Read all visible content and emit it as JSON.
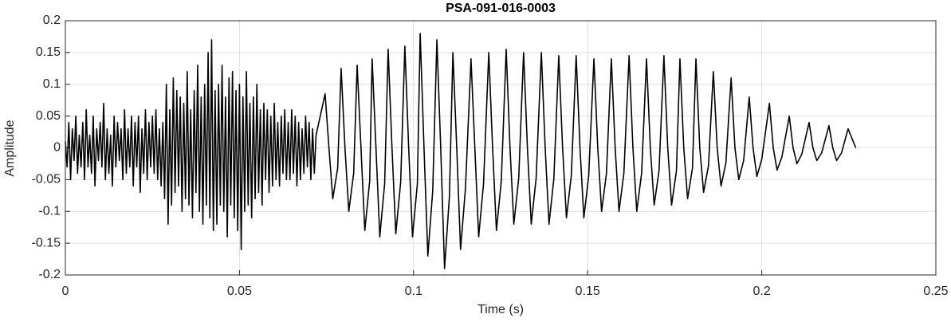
{
  "chart_data": {
    "type": "line",
    "title": "PSA-091-016-0003",
    "xlabel": "Time (s)",
    "ylabel": "Amplitude",
    "color": "#000000",
    "grid": true,
    "xlim": [
      0,
      0.25
    ],
    "xticks": [
      0,
      0.05,
      0.1,
      0.15,
      0.2,
      0.25
    ],
    "ylim": [
      -0.2,
      0.2
    ],
    "yticks": [
      -0.2,
      -0.15,
      -0.1,
      -0.05,
      0,
      0.05,
      0.1,
      0.15,
      0.2
    ],
    "x": [
      0,
      0.0005,
      0.001,
      0.0015,
      0.002,
      0.0025,
      0.003,
      0.0035,
      0.004,
      0.0045,
      0.005,
      0.0055,
      0.006,
      0.0065,
      0.007,
      0.0075,
      0.008,
      0.0085,
      0.009,
      0.0095,
      0.01,
      0.0105,
      0.011,
      0.0115,
      0.012,
      0.0125,
      0.013,
      0.0135,
      0.014,
      0.0145,
      0.015,
      0.0155,
      0.016,
      0.0165,
      0.017,
      0.0175,
      0.018,
      0.0185,
      0.019,
      0.0195,
      0.02,
      0.0205,
      0.021,
      0.0215,
      0.022,
      0.0225,
      0.023,
      0.0235,
      0.024,
      0.0245,
      0.025,
      0.0255,
      0.026,
      0.0265,
      0.027,
      0.0275,
      0.028,
      0.0285,
      0.029,
      0.0295,
      0.03,
      0.0305,
      0.031,
      0.0315,
      0.032,
      0.0325,
      0.033,
      0.0335,
      0.034,
      0.0345,
      0.035,
      0.0355,
      0.036,
      0.0365,
      0.037,
      0.0375,
      0.038,
      0.0385,
      0.039,
      0.0395,
      0.04,
      0.0405,
      0.041,
      0.0415,
      0.042,
      0.0425,
      0.043,
      0.0435,
      0.044,
      0.0445,
      0.045,
      0.0455,
      0.046,
      0.0465,
      0.047,
      0.0475,
      0.048,
      0.0485,
      0.049,
      0.0495,
      0.05,
      0.0505,
      0.051,
      0.0515,
      0.052,
      0.0525,
      0.053,
      0.0535,
      0.054,
      0.0545,
      0.055,
      0.0555,
      0.056,
      0.0565,
      0.057,
      0.0575,
      0.058,
      0.0585,
      0.059,
      0.0595,
      0.06,
      0.0605,
      0.061,
      0.0615,
      0.062,
      0.0625,
      0.063,
      0.0635,
      0.064,
      0.0645,
      0.065,
      0.0655,
      0.066,
      0.0665,
      0.067,
      0.0675,
      0.068,
      0.0685,
      0.069,
      0.0695,
      0.07,
      0.0705,
      0.071,
      0.0715,
      0.072,
      0.0746,
      0.0757,
      0.0768,
      0.0782,
      0.0792,
      0.0803,
      0.0814,
      0.0828,
      0.0838,
      0.0849,
      0.086,
      0.0874,
      0.0881,
      0.0892,
      0.0903,
      0.0917,
      0.0927,
      0.0938,
      0.0949,
      0.0963,
      0.0975,
      0.0986,
      0.0997,
      0.1011,
      0.1019,
      0.103,
      0.1041,
      0.1055,
      0.1067,
      0.1078,
      0.1089,
      0.1103,
      0.1113,
      0.1124,
      0.1135,
      0.1149,
      0.1165,
      0.1176,
      0.1187,
      0.1201,
      0.1216,
      0.1227,
      0.1238,
      0.1252,
      0.1266,
      0.1277,
      0.1288,
      0.1302,
      0.1316,
      0.1327,
      0.1338,
      0.1352,
      0.1367,
      0.1378,
      0.1389,
      0.1403,
      0.1417,
      0.1428,
      0.1439,
      0.1453,
      0.1467,
      0.1478,
      0.1489,
      0.1503,
      0.1518,
      0.1529,
      0.154,
      0.1554,
      0.1568,
      0.1579,
      0.159,
      0.1604,
      0.1619,
      0.163,
      0.1641,
      0.1655,
      0.1669,
      0.168,
      0.1691,
      0.1705,
      0.1719,
      0.173,
      0.1741,
      0.1755,
      0.1765,
      0.1776,
      0.1787,
      0.1801,
      0.1811,
      0.1822,
      0.1833,
      0.1847,
      0.1861,
      0.1872,
      0.1883,
      0.1897,
      0.1912,
      0.1923,
      0.1934,
      0.1948,
      0.1964,
      0.1975,
      0.1986,
      0.2,
      0.2022,
      0.2033,
      0.2044,
      0.2058,
      0.2079,
      0.209,
      0.2101,
      0.2115,
      0.2136,
      0.2147,
      0.2158,
      0.2172,
      0.2193,
      0.2204,
      0.2215,
      0.2229,
      0.2248,
      0.227
    ],
    "values": [
      0.01,
      -0.03,
      0.04,
      -0.05,
      0.03,
      -0.02,
      0.05,
      -0.04,
      0.02,
      -0.03,
      0.04,
      -0.05,
      0.06,
      -0.03,
      0.02,
      -0.04,
      0.05,
      -0.06,
      0.03,
      -0.02,
      0.04,
      -0.03,
      0.07,
      -0.05,
      0.03,
      -0.04,
      0.02,
      -0.06,
      0.05,
      -0.03,
      0.04,
      -0.02,
      0.03,
      -0.05,
      0.06,
      -0.04,
      0.03,
      -0.03,
      0.05,
      -0.06,
      0.04,
      -0.03,
      0.05,
      -0.07,
      0.03,
      -0.04,
      0.06,
      -0.05,
      0.04,
      -0.03,
      0.05,
      -0.04,
      0.06,
      -0.05,
      0.03,
      -0.06,
      0.04,
      -0.08,
      0.1,
      -0.12,
      0.06,
      -0.09,
      0.11,
      -0.07,
      0.09,
      -0.06,
      0.08,
      -0.1,
      0.07,
      -0.08,
      0.12,
      -0.09,
      0.06,
      -0.11,
      0.09,
      -0.07,
      0.13,
      -0.1,
      0.08,
      -0.12,
      0.1,
      -0.09,
      0.15,
      -0.11,
      0.17,
      -0.13,
      0.09,
      -0.12,
      0.1,
      -0.09,
      0.13,
      -0.1,
      0.08,
      -0.14,
      0.11,
      -0.09,
      0.12,
      -0.11,
      0.09,
      -0.13,
      0.1,
      -0.16,
      0.08,
      -0.1,
      0.12,
      -0.09,
      0.07,
      -0.11,
      0.08,
      -0.08,
      0.1,
      -0.07,
      0.06,
      -0.09,
      0.07,
      -0.05,
      0.06,
      -0.07,
      0.05,
      -0.06,
      0.07,
      -0.05,
      0.04,
      -0.06,
      0.05,
      -0.04,
      0.06,
      -0.05,
      0.04,
      -0.05,
      0.06,
      -0.04,
      0.05,
      -0.06,
      0.04,
      -0.05,
      0.03,
      -0.04,
      0.05,
      -0.03,
      0.04,
      -0.05,
      0.03,
      -0.04,
      0.02,
      0.085,
      0,
      -0.08,
      -0.032,
      0.125,
      0,
      -0.1,
      -0.04,
      0.13,
      0,
      -0.13,
      -0.052,
      0.14,
      0,
      -0.14,
      -0.056,
      0.155,
      0,
      -0.135,
      -0.054,
      0.16,
      0,
      -0.14,
      -0.056,
      0.18,
      0,
      -0.17,
      -0.068,
      0.17,
      0,
      -0.19,
      -0.076,
      0.15,
      0,
      -0.16,
      -0.064,
      0.14,
      0,
      -0.14,
      -0.056,
      0.15,
      0,
      -0.13,
      -0.052,
      0.155,
      0,
      -0.12,
      -0.048,
      0.15,
      0,
      -0.12,
      -0.048,
      0.15,
      0,
      -0.12,
      -0.048,
      0.145,
      0,
      -0.11,
      -0.044,
      0.145,
      0,
      -0.11,
      -0.044,
      0.14,
      0,
      -0.1,
      -0.04,
      0.14,
      0,
      -0.1,
      -0.04,
      0.145,
      0,
      -0.1,
      -0.04,
      0.14,
      0,
      -0.09,
      -0.036,
      0.145,
      0,
      -0.09,
      -0.036,
      0.14,
      0,
      -0.08,
      -0.032,
      0.14,
      0,
      -0.07,
      -0.028,
      0.12,
      0,
      -0.06,
      -0.024,
      0.11,
      0,
      -0.05,
      -0.02,
      0.08,
      0,
      -0.045,
      -0.018,
      0.07,
      0,
      -0.035,
      -0.014,
      0.05,
      0,
      -0.025,
      -0.01,
      0.04,
      0,
      -0.02,
      -0.008,
      0.035,
      0,
      -0.02,
      -0.008,
      0.03,
      0
    ]
  }
}
